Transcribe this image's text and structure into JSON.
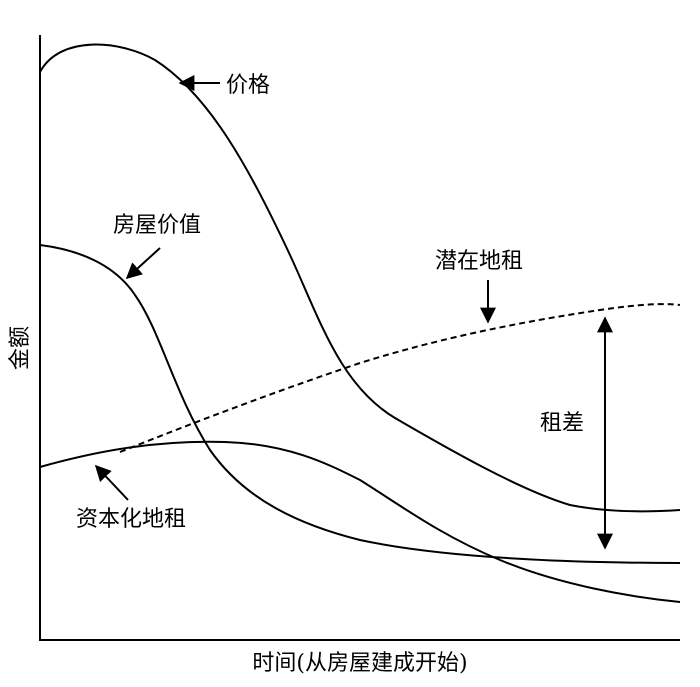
{
  "diagram": {
    "axes": {
      "ylabel": "金额",
      "xlabel": "时间(从房屋建成开始)"
    },
    "curves": {
      "price": "价格",
      "house_value": "房屋价值",
      "potential_rent": "潜在地租",
      "capitalized_rent": "资本化地租"
    },
    "rent_gap": "租差"
  }
}
